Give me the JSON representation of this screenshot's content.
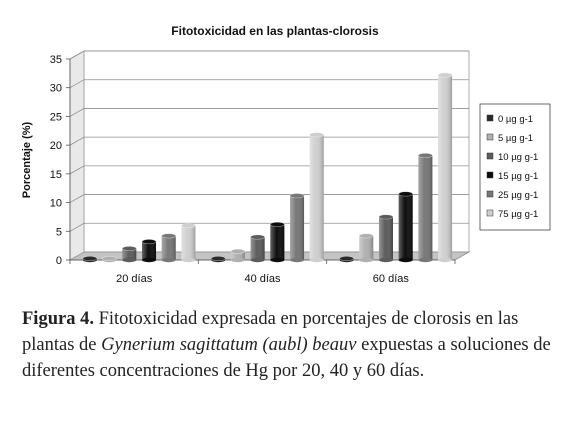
{
  "chart_data": {
    "type": "bar",
    "title": "Fitotoxicidad en las plantas-clorosis",
    "ylabel": "Porcentaje (%)",
    "xlabel": "",
    "ylim": [
      0,
      35
    ],
    "yticks": [
      0,
      5,
      10,
      15,
      20,
      25,
      30,
      35
    ],
    "grid": true,
    "legend_position": "right",
    "categories": [
      "20 días",
      "40 días",
      "60 días"
    ],
    "series": [
      {
        "name": "0 µg g-1",
        "color": "#2a2a2a",
        "values": [
          0,
          0,
          0
        ]
      },
      {
        "name": "5 µg g-1",
        "color": "#b0b0b0",
        "values": [
          0,
          1.5,
          4.2
        ]
      },
      {
        "name": "10 µg g-1",
        "color": "#5c5c5c",
        "values": [
          2.0,
          4.0,
          7.5
        ]
      },
      {
        "name": "15 µg g-1",
        "color": "#0d0d0d",
        "values": [
          3.2,
          6.2,
          11.5
        ]
      },
      {
        "name": "25 µg g-1",
        "color": "#777777",
        "values": [
          4.2,
          11.2,
          18.2
        ]
      },
      {
        "name": "75 µg g-1",
        "color": "#cfcfcf",
        "values": [
          6.0,
          21.8,
          32.2
        ]
      }
    ]
  },
  "caption": {
    "label": "Figura 4.",
    "text_before": " Fitotoxicidad expresada en porcentajes de clorosis en las plantas de ",
    "species": "Gynerium sagittatum (aubl) beauv",
    "text_after": " expuestas a soluciones de diferentes concentraciones de Hg por 20, 40 y 60 días."
  }
}
